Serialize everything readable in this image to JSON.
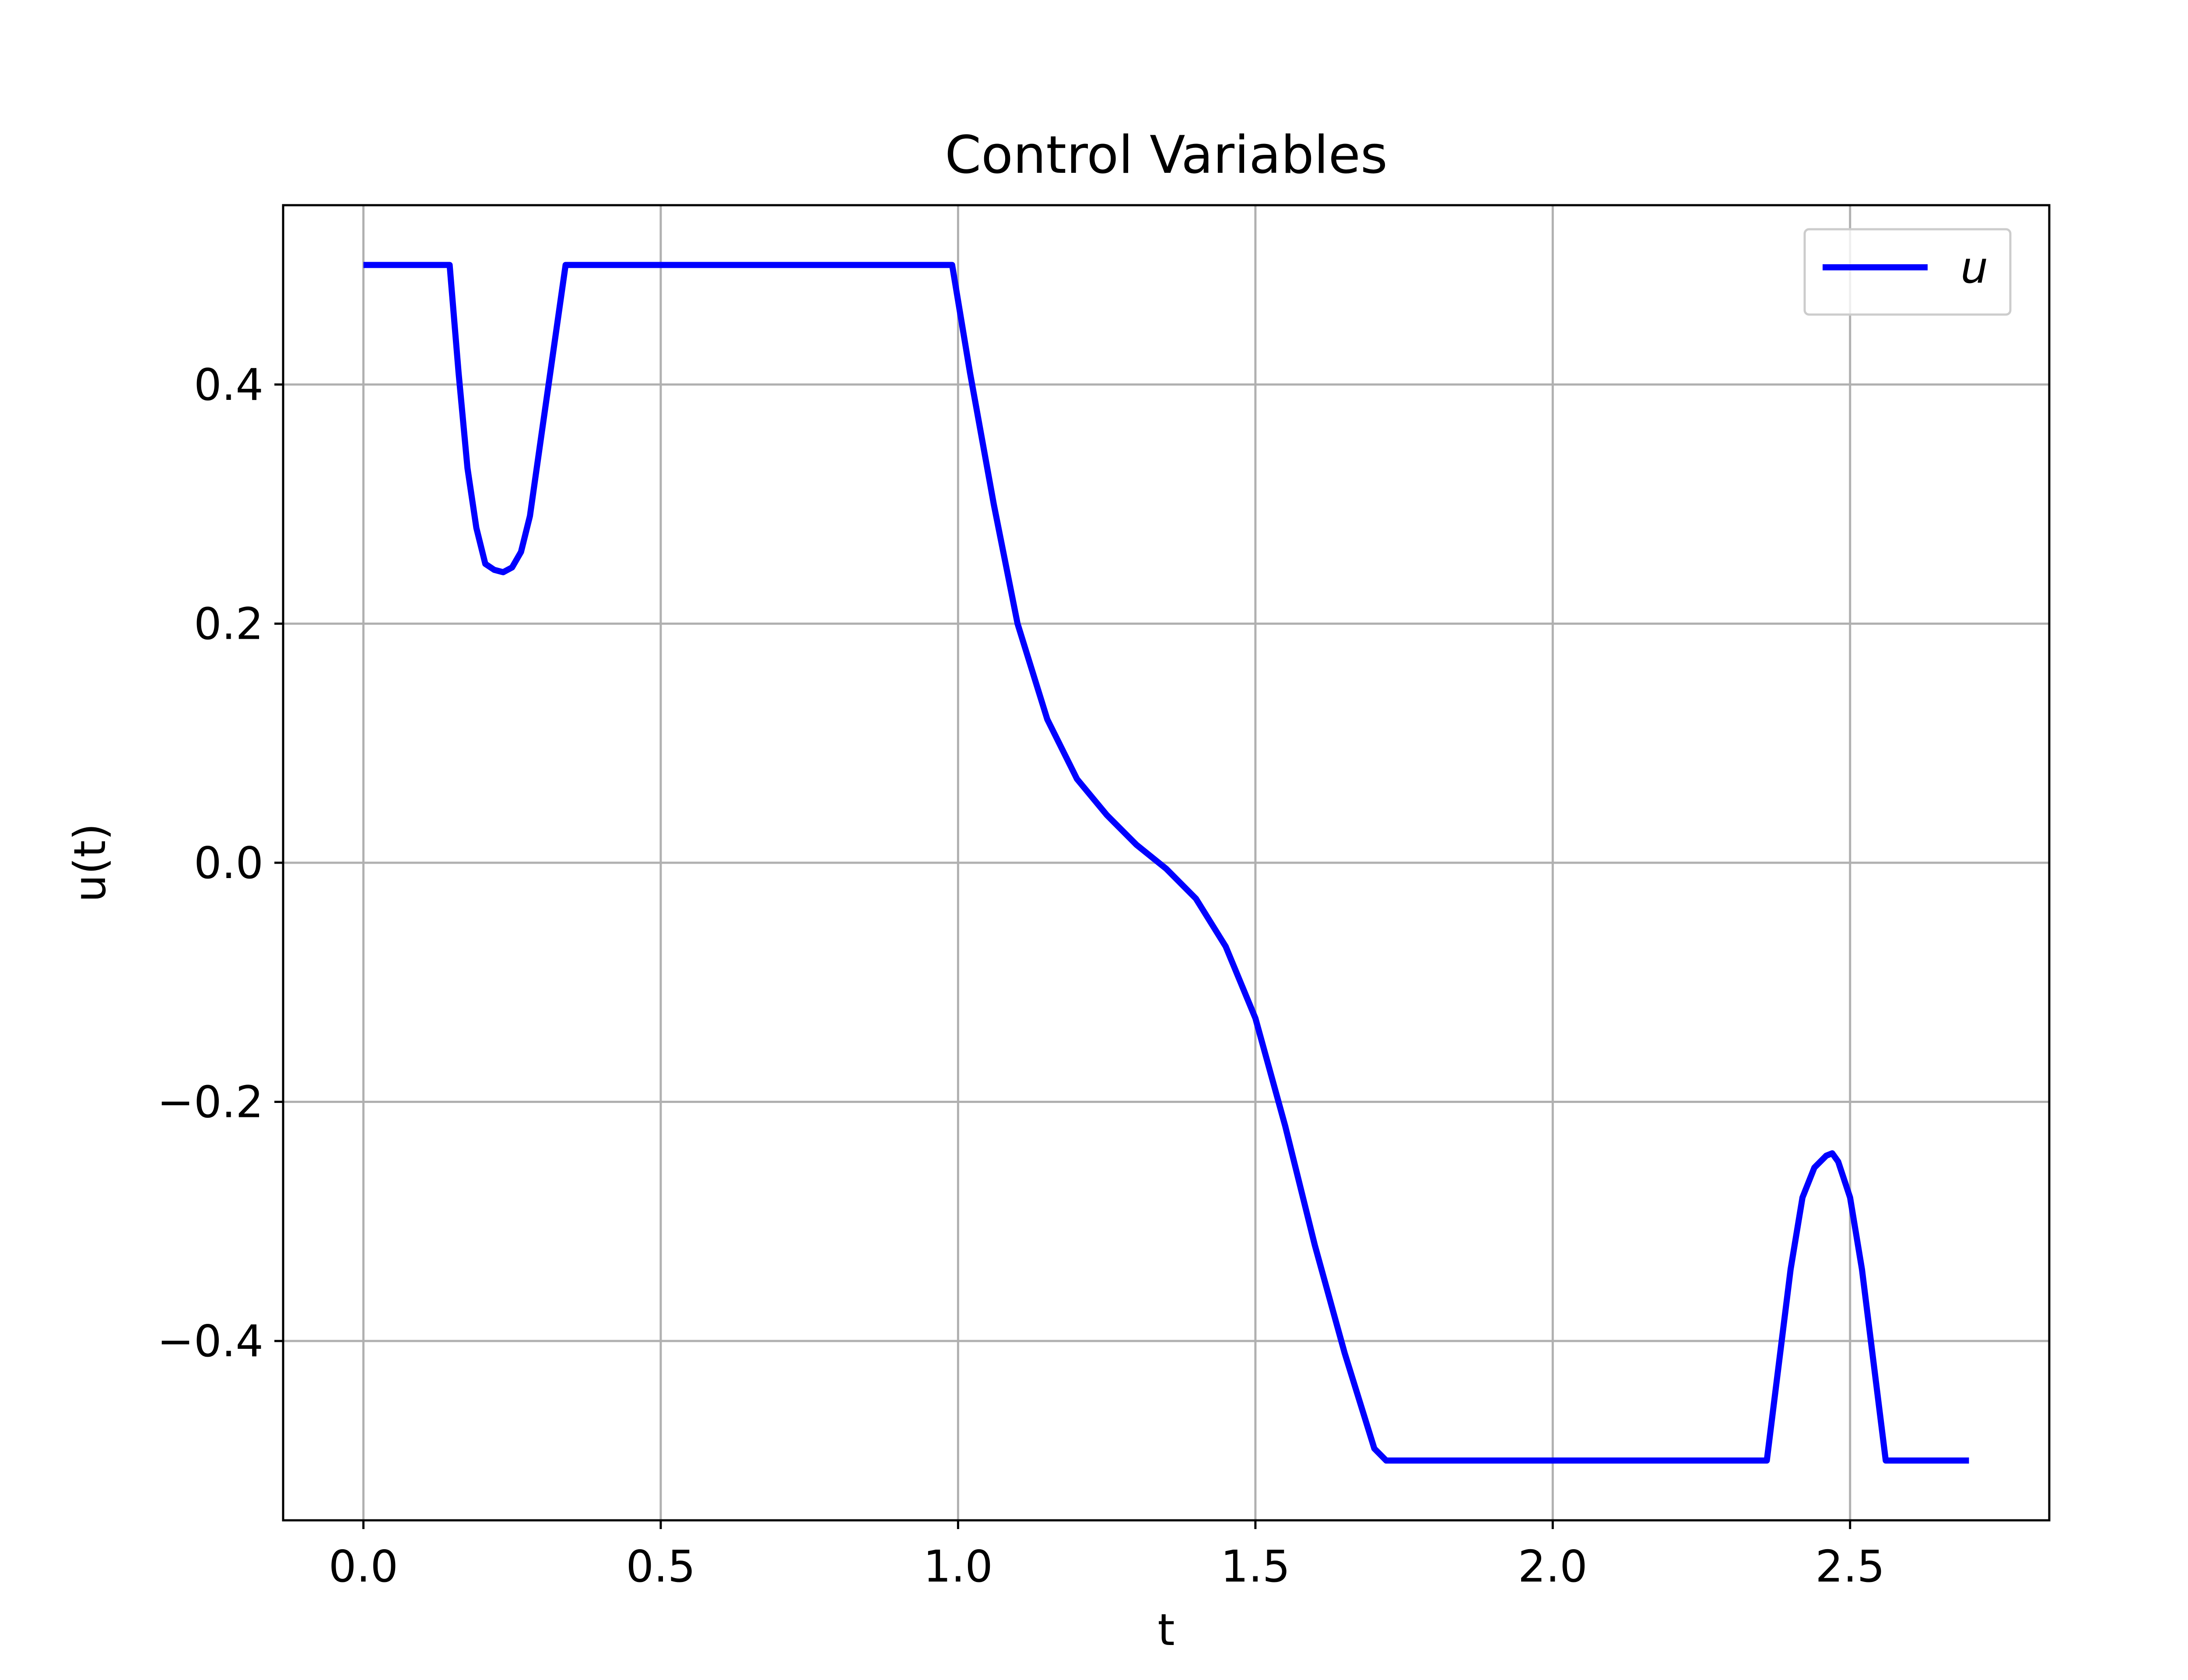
{
  "chart_data": {
    "type": "line",
    "title": "Control Variables",
    "xlabel": "t",
    "ylabel": "u(t)",
    "xlim": [
      -0.135,
      2.835
    ],
    "ylim": [
      -0.55,
      0.55
    ],
    "xticks": [
      0.0,
      0.5,
      1.0,
      1.5,
      2.0,
      2.5
    ],
    "xtick_labels": [
      "0.0",
      "0.5",
      "1.0",
      "1.5",
      "2.0",
      "2.5"
    ],
    "yticks": [
      0.4,
      0.2,
      0.0,
      -0.2,
      -0.4
    ],
    "ytick_labels": [
      "0.4",
      "0.2",
      "0.0",
      "−0.2",
      "−0.4"
    ],
    "grid": true,
    "legend": "top-right",
    "series": [
      {
        "name": "u",
        "color": "#0000ff",
        "x": [
          0.0,
          0.145,
          0.16,
          0.175,
          0.19,
          0.205,
          0.22,
          0.235,
          0.25,
          0.265,
          0.28,
          0.3,
          0.32,
          0.34,
          0.5,
          0.75,
          0.99,
          1.02,
          1.06,
          1.1,
          1.15,
          1.2,
          1.25,
          1.3,
          1.35,
          1.4,
          1.45,
          1.5,
          1.55,
          1.6,
          1.65,
          1.7,
          1.72,
          1.9,
          2.1,
          2.36,
          2.38,
          2.4,
          2.42,
          2.44,
          2.46,
          2.47,
          2.48,
          2.5,
          2.52,
          2.54,
          2.56,
          2.7
        ],
        "y": [
          0.5,
          0.5,
          0.41,
          0.33,
          0.28,
          0.25,
          0.245,
          0.243,
          0.247,
          0.26,
          0.29,
          0.36,
          0.43,
          0.5,
          0.5,
          0.5,
          0.5,
          0.41,
          0.3,
          0.2,
          0.12,
          0.07,
          0.04,
          0.015,
          -0.005,
          -0.03,
          -0.07,
          -0.13,
          -0.22,
          -0.32,
          -0.41,
          -0.49,
          -0.5,
          -0.5,
          -0.5,
          -0.5,
          -0.42,
          -0.34,
          -0.28,
          -0.255,
          -0.245,
          -0.243,
          -0.25,
          -0.28,
          -0.34,
          -0.42,
          -0.5,
          -0.5
        ]
      }
    ]
  }
}
